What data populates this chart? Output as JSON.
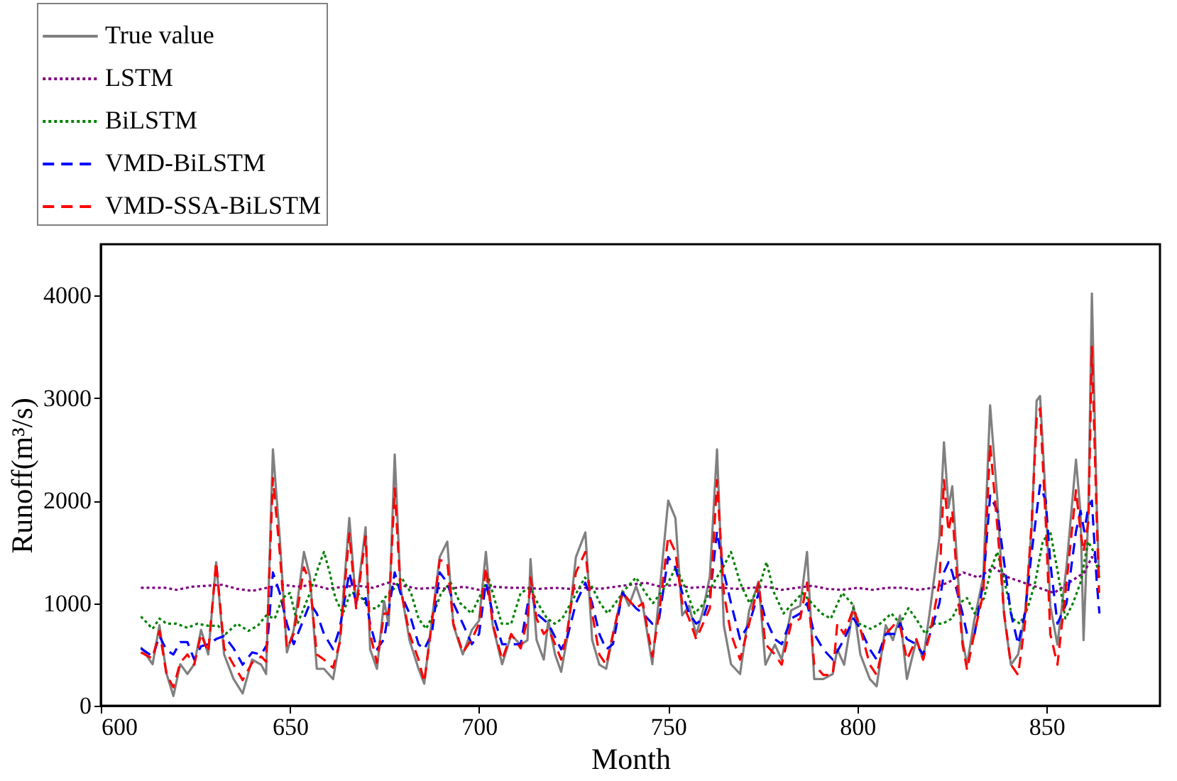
{
  "chart_data": {
    "type": "line",
    "xlabel": "Month",
    "ylabel": "Runoff(m³/s)",
    "xlim": [
      600,
      880
    ],
    "xticks": [
      600,
      650,
      700,
      750,
      800,
      850
    ],
    "ylim": [
      0,
      4500
    ],
    "yticks": [
      0,
      1000,
      2000,
      3000,
      4000
    ],
    "grid": false,
    "legend": "top left",
    "marker": "none",
    "series": [
      {
        "name": "True value",
        "color": "#808080",
        "line_style": "solid",
        "x": [
          610.6,
          613.7,
          615.5,
          617.4,
          619.2,
          621,
          622.9,
          624.7,
          626.5,
          628.4,
          630.5,
          632.6,
          635.1,
          637.5,
          640,
          642.4,
          643.7,
          645.5,
          647.3,
          649.2,
          651,
          653.7,
          655.3,
          657.1,
          659,
          661.4,
          663.2,
          665.7,
          667.5,
          670,
          671.2,
          673,
          674.9,
          676.1,
          677.7,
          679.2,
          681.6,
          684,
          685.5,
          687.5,
          689.6,
          691.6,
          693.2,
          695.7,
          698.1,
          700,
          701.8,
          703.6,
          706.1,
          708.5,
          711,
          712.8,
          713.6,
          715.2,
          717.1,
          718.3,
          720.1,
          721.7,
          723.2,
          725.6,
          728.1,
          729.9,
          731.8,
          733.6,
          735.4,
          737.9,
          739.6,
          741.5,
          743.3,
          745.8,
          747.6,
          750,
          751.9,
          753.7,
          755.5,
          757.4,
          759.2,
          761,
          762.9,
          764.7,
          766.6,
          769,
          771.4,
          773.9,
          775.7,
          778.2,
          780,
          782.5,
          784.9,
          786.7,
          788.6,
          791,
          793.5,
          794.7,
          796.5,
          799,
          800.8,
          803.3,
          805.1,
          807.5,
          809.4,
          811.3,
          813.1,
          815.6,
          817.4,
          819.2,
          821.7,
          822.9,
          824.1,
          825.1,
          826.6,
          827.8,
          829,
          830.9,
          833.3,
          835.1,
          837,
          838.8,
          840.6,
          842.5,
          844.3,
          846.1,
          847.4,
          848.3,
          849.8,
          851,
          852.9,
          855.3,
          857.8,
          859,
          859.8,
          861.1,
          862,
          863.3,
          863.9
        ],
        "values": [
          570,
          405,
          785,
          310,
          95,
          405,
          310,
          405,
          740,
          500,
          1400,
          500,
          260,
          120,
          450,
          400,
          310,
          2500,
          1640,
          520,
          740,
          1500,
          1260,
          360,
          360,
          260,
          640,
          1830,
          975,
          1740,
          550,
          360,
          1020,
          785,
          2450,
          1170,
          640,
          360,
          215,
          830,
          1450,
          1600,
          785,
          500,
          740,
          830,
          1500,
          785,
          405,
          690,
          595,
          640,
          1430,
          640,
          450,
          830,
          500,
          330,
          640,
          1450,
          1690,
          640,
          400,
          360,
          690,
          1120,
          975,
          1165,
          975,
          405,
          1070,
          2000,
          1830,
          880,
          975,
          690,
          930,
          1260,
          2500,
          785,
          405,
          310,
          930,
          1210,
          400,
          595,
          450,
          930,
          975,
          1500,
          260,
          260,
          310,
          550,
          400,
          975,
          500,
          260,
          190,
          785,
          640,
          880,
          260,
          640,
          450,
          930,
          1640,
          2570,
          1930,
          2140,
          1260,
          640,
          400,
          830,
          1260,
          2930,
          2020,
          880,
          400,
          500,
          880,
          1740,
          2975,
          3020,
          2020,
          975,
          595,
          1360,
          2400,
          1880,
          640,
          1930,
          4020,
          1930,
          1260
        ]
      },
      {
        "name": "LSTM",
        "color": "#800080",
        "line_style": "dotted",
        "x": [
          610.6,
          614,
          617,
          620,
          624,
          628,
          632,
          636,
          640,
          644,
          648,
          652,
          656,
          660,
          664,
          668,
          672,
          676,
          680,
          684,
          688,
          692,
          696,
          700,
          704,
          708,
          712,
          716,
          720,
          724,
          728,
          732,
          736,
          740,
          744,
          748,
          752,
          756,
          760,
          764,
          768,
          772,
          776,
          780,
          784,
          788,
          792,
          796,
          800,
          804,
          808,
          812,
          816,
          820,
          824,
          828,
          832,
          836,
          840,
          844,
          848,
          852,
          856,
          860,
          862,
          864
        ],
        "values": [
          1150,
          1150,
          1150,
          1130,
          1160,
          1170,
          1180,
          1140,
          1120,
          1150,
          1180,
          1160,
          1180,
          1140,
          1160,
          1170,
          1150,
          1200,
          1170,
          1140,
          1150,
          1140,
          1160,
          1130,
          1160,
          1150,
          1150,
          1140,
          1150,
          1140,
          1150,
          1140,
          1160,
          1180,
          1200,
          1160,
          1180,
          1150,
          1160,
          1150,
          1140,
          1150,
          1160,
          1130,
          1150,
          1170,
          1140,
          1130,
          1150,
          1130,
          1150,
          1150,
          1130,
          1150,
          1200,
          1300,
          1250,
          1350,
          1250,
          1200,
          1150,
          1100,
          1200,
          1300,
          1450,
          1350
        ]
      },
      {
        "name": "BiLSTM",
        "color": "#008000",
        "line_style": "dotted",
        "x": [
          610.6,
          613.7,
          615.5,
          617.4,
          620,
          622.9,
          625.5,
          628.4,
          631,
          633,
          636,
          639,
          641.5,
          643.7,
          646,
          648,
          650,
          652,
          655.3,
          657.5,
          659,
          660.5,
          662,
          664,
          666,
          668,
          671,
          673,
          675,
          677.7,
          679.5,
          682,
          684,
          686,
          688,
          690,
          692.5,
          695,
          698,
          700,
          702.5,
          704,
          706,
          708.5,
          711,
          713.5,
          715.5,
          718,
          720,
          722,
          725,
          728,
          730,
          732,
          734,
          736,
          739,
          741.5,
          744,
          746,
          748,
          750,
          752,
          754.5,
          757,
          759.5,
          762,
          764.5,
          766.6,
          769,
          771.5,
          774,
          776,
          778,
          780.5,
          783,
          785.5,
          788,
          790.5,
          793,
          796,
          798.5,
          800.5,
          803.5,
          806,
          809,
          811.3,
          813.5,
          815.5,
          818,
          820,
          822.5,
          825,
          827,
          829,
          831,
          833.5,
          835.5,
          837,
          839,
          841,
          843,
          845,
          847,
          849,
          851,
          853,
          855,
          857,
          859,
          861,
          862.5,
          864
        ],
        "values": [
          870,
          750,
          850,
          800,
          800,
          760,
          800,
          780,
          780,
          700,
          800,
          730,
          780,
          880,
          850,
          1050,
          1100,
          800,
          1100,
          1350,
          1500,
          1300,
          1050,
          900,
          1100,
          1100,
          950,
          950,
          1050,
          1150,
          1250,
          1100,
          850,
          750,
          900,
          1100,
          1200,
          1000,
          900,
          1050,
          1250,
          1050,
          800,
          800,
          1100,
          1150,
          1000,
          850,
          800,
          850,
          1050,
          1250,
          1150,
          1000,
          900,
          1000,
          1150,
          1250,
          1100,
          1000,
          1100,
          1200,
          1350,
          1150,
          900,
          1000,
          1200,
          1350,
          1500,
          1200,
          1000,
          1150,
          1400,
          1100,
          900,
          1000,
          1100,
          1000,
          900,
          850,
          1100,
          1000,
          800,
          750,
          800,
          900,
          800,
          950,
          850,
          700,
          800,
          800,
          850,
          1000,
          1050,
          900,
          1050,
          1350,
          1500,
          1200,
          850,
          800,
          950,
          1200,
          1600,
          1700,
          1300,
          850,
          1000,
          1200,
          1600,
          1500,
          1250
        ]
      },
      {
        "name": "VMD-BiLSTM",
        "color": "#0000ff",
        "line_style": "dashed",
        "x": [
          610.6,
          613.7,
          615.5,
          617.4,
          619.2,
          621,
          622.9,
          624.7,
          626.5,
          628.4,
          630.5,
          632.6,
          635.1,
          637.5,
          640,
          642.4,
          644,
          645.5,
          647.3,
          649.2,
          651,
          653.7,
          655.3,
          657.1,
          659,
          661.4,
          663.2,
          665.7,
          667.5,
          670,
          671.2,
          673,
          674.9,
          677.7,
          679.2,
          681.6,
          684,
          685.5,
          687.5,
          689.6,
          691.6,
          693.2,
          695.7,
          698.1,
          700,
          701.8,
          703.6,
          706.1,
          708.5,
          711,
          713.6,
          715.2,
          718.3,
          721.7,
          723.2,
          725.6,
          728.1,
          729.9,
          731.8,
          733.6,
          735.4,
          737.9,
          739.1,
          741.5,
          743.3,
          745.8,
          747.6,
          750,
          751.9,
          753.7,
          755.5,
          757.4,
          759.2,
          761,
          762.9,
          764.7,
          766.6,
          769,
          771.4,
          773.9,
          775.7,
          778.2,
          780,
          782.5,
          784.9,
          786.7,
          788.6,
          791,
          793.5,
          796.5,
          799,
          800.8,
          803.3,
          805.1,
          807.5,
          810,
          811.3,
          813.1,
          815.6,
          817.4,
          819.2,
          821.7,
          822.9,
          824.1,
          825.1,
          827.8,
          829,
          831,
          833.3,
          835.1,
          837,
          838.8,
          840.6,
          842.5,
          844.3,
          846.1,
          848.3,
          849.8,
          851,
          852.9,
          855.3,
          857.8,
          859,
          860,
          861.1,
          862,
          863.3,
          864
        ],
        "values": [
          560,
          480,
          680,
          540,
          500,
          620,
          620,
          450,
          580,
          600,
          650,
          680,
          560,
          400,
          520,
          500,
          600,
          1300,
          1100,
          800,
          600,
          850,
          1000,
          900,
          700,
          550,
          760,
          1300,
          1000,
          1050,
          800,
          550,
          650,
          1300,
          1100,
          900,
          600,
          550,
          700,
          1300,
          1200,
          1000,
          800,
          600,
          700,
          1200,
          900,
          600,
          600,
          600,
          1150,
          900,
          800,
          550,
          650,
          1000,
          1200,
          1000,
          700,
          550,
          600,
          1100,
          1050,
          950,
          900,
          800,
          850,
          1450,
          1350,
          1100,
          900,
          800,
          850,
          1050,
          1700,
          1300,
          1000,
          650,
          800,
          1100,
          850,
          650,
          600,
          850,
          900,
          1000,
          700,
          550,
          450,
          650,
          850,
          750,
          550,
          450,
          700,
          700,
          800,
          650,
          600,
          500,
          700,
          1000,
          1300,
          1400,
          1300,
          900,
          700,
          700,
          1200,
          2050,
          1900,
          1400,
          900,
          600,
          900,
          1500,
          2150,
          2000,
          1400,
          800,
          1000,
          1700,
          1900,
          1700,
          1950,
          2000,
          1200,
          900
        ]
      },
      {
        "name": "VMD-SSA-BiLSTM",
        "color": "#ff0000",
        "line_style": "dashed",
        "x": [
          610.6,
          613.7,
          615.5,
          617.4,
          619.2,
          621,
          622.9,
          624.7,
          626.5,
          628.4,
          630.5,
          632.6,
          635.1,
          637.5,
          640,
          642.4,
          643.7,
          645.5,
          647.3,
          649.2,
          651,
          653.7,
          655.3,
          657.1,
          659,
          661.4,
          663.2,
          665.7,
          667.5,
          670,
          671.2,
          673,
          674.9,
          676.1,
          677.7,
          679.2,
          681.6,
          684,
          685.5,
          687.5,
          689.6,
          691.6,
          693.2,
          695.7,
          698.1,
          700,
          701.8,
          703.6,
          706.1,
          708.5,
          711,
          712.8,
          713.6,
          715.2,
          717.1,
          718.3,
          720.1,
          721.7,
          723.2,
          725.6,
          728.1,
          729.9,
          731.8,
          733.6,
          735.4,
          737.9,
          739.1,
          741.5,
          743.3,
          745.8,
          747.6,
          750,
          751.9,
          753.7,
          755.5,
          757.4,
          759.2,
          761,
          762.9,
          764.7,
          766.6,
          769,
          771.4,
          773.9,
          775.7,
          778.2,
          780,
          782.5,
          784.9,
          786.7,
          788.6,
          791,
          793.5,
          794.7,
          796.5,
          799,
          800.8,
          803.3,
          805.1,
          807.5,
          810,
          811.3,
          813.1,
          815.6,
          817.4,
          819.2,
          821.7,
          822.9,
          824.1,
          825.1,
          826.6,
          827.8,
          829,
          830.9,
          833.3,
          835.1,
          837,
          838.8,
          840.6,
          842.5,
          844.3,
          846.1,
          847.4,
          848.3,
          849.8,
          851,
          852.9,
          855.3,
          857.8,
          859,
          859.8,
          861.1,
          862,
          863.3,
          863.9
        ],
        "values": [
          520,
          460,
          730,
          300,
          180,
          420,
          500,
          400,
          700,
          520,
          1400,
          560,
          400,
          250,
          420,
          480,
          430,
          2220,
          1500,
          560,
          700,
          1350,
          1200,
          500,
          450,
          370,
          620,
          1680,
          950,
          1650,
          700,
          420,
          900,
          900,
          2120,
          1150,
          700,
          450,
          230,
          800,
          1420,
          1400,
          800,
          520,
          650,
          800,
          1350,
          800,
          450,
          700,
          560,
          850,
          1250,
          850,
          700,
          750,
          600,
          450,
          700,
          1300,
          1500,
          900,
          500,
          400,
          700,
          1100,
          1050,
          950,
          1000,
          480,
          900,
          1650,
          1500,
          1000,
          850,
          650,
          800,
          950,
          2200,
          1100,
          700,
          450,
          800,
          1200,
          600,
          500,
          400,
          800,
          850,
          1200,
          400,
          300,
          300,
          800,
          700,
          950,
          750,
          400,
          300,
          700,
          800,
          780,
          450,
          650,
          450,
          700,
          1200,
          2200,
          1700,
          1900,
          1100,
          600,
          350,
          700,
          1100,
          2550,
          1750,
          900,
          400,
          300,
          800,
          1800,
          2800,
          2900,
          1800,
          700,
          400,
          1200,
          2100,
          1700,
          1500,
          1800,
          3500,
          1800,
          1100
        ]
      }
    ]
  }
}
